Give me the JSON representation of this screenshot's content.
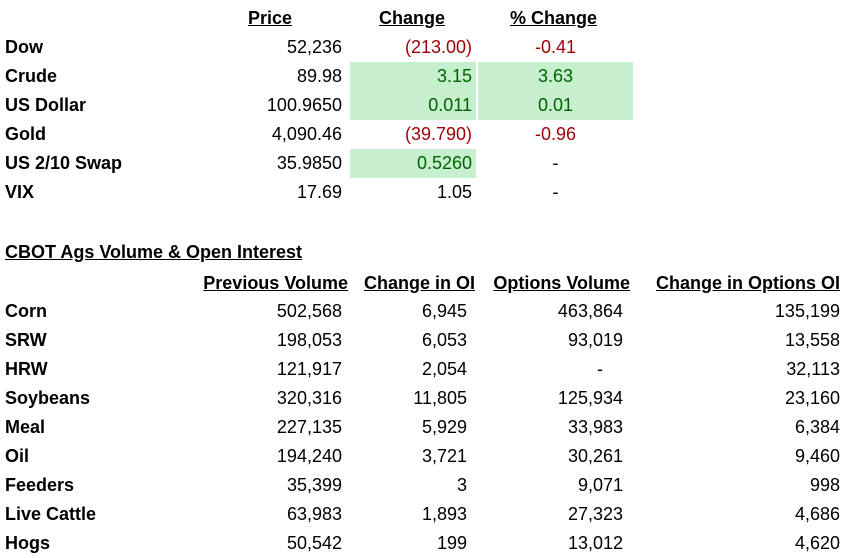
{
  "markets": {
    "headers": {
      "price": "Price",
      "change": "Change",
      "pct_change": "% Change"
    },
    "rows": [
      {
        "name": "Dow",
        "price": "52,236",
        "change": "(213.00)",
        "pct": "-0.41",
        "change_tone": "neg",
        "pct_tone": "neg",
        "change_hl": false,
        "pct_hl": false
      },
      {
        "name": "Crude",
        "price": "89.98",
        "change": "3.15",
        "pct": "3.63",
        "change_tone": "pos",
        "pct_tone": "pos",
        "change_hl": true,
        "pct_hl": true
      },
      {
        "name": "US Dollar",
        "price": "100.9650",
        "change": "0.011",
        "pct": "0.01",
        "change_tone": "pos",
        "pct_tone": "pos",
        "change_hl": true,
        "pct_hl": true
      },
      {
        "name": "Gold",
        "price": "4,090.46",
        "change": "(39.790)",
        "pct": "-0.96",
        "change_tone": "neg",
        "pct_tone": "neg",
        "change_hl": false,
        "pct_hl": false
      },
      {
        "name": "US 2/10 Swap",
        "price": "35.9850",
        "change": "0.5260",
        "pct": "-",
        "change_tone": "pos",
        "pct_tone": "",
        "change_hl": true,
        "pct_hl": false
      },
      {
        "name": "VIX",
        "price": "17.69",
        "change": "1.05",
        "pct": "-",
        "change_tone": "",
        "pct_tone": "",
        "change_hl": false,
        "pct_hl": false
      }
    ]
  },
  "ags": {
    "title": "CBOT Ags Volume & Open Interest",
    "headers": {
      "prev_volume": "Previous Volume",
      "change_oi": "Change in OI",
      "options_volume": "Options Volume",
      "change_options_oi": "Change in Options OI"
    },
    "rows": [
      {
        "name": "Corn",
        "prev_volume": "502,568",
        "change_oi": "6,945",
        "options_volume": "463,864",
        "change_options_oi": "135,199"
      },
      {
        "name": "SRW",
        "prev_volume": "198,053",
        "change_oi": "6,053",
        "options_volume": "93,019",
        "change_options_oi": "13,558"
      },
      {
        "name": "HRW",
        "prev_volume": "121,917",
        "change_oi": "2,054",
        "options_volume": "-",
        "change_options_oi": "32,113"
      },
      {
        "name": "Soybeans",
        "prev_volume": "320,316",
        "change_oi": "11,805",
        "options_volume": "125,934",
        "change_options_oi": "23,160"
      },
      {
        "name": "Meal",
        "prev_volume": "227,135",
        "change_oi": "5,929",
        "options_volume": "33,983",
        "change_options_oi": "6,384"
      },
      {
        "name": "Oil",
        "prev_volume": "194,240",
        "change_oi": "3,721",
        "options_volume": "30,261",
        "change_options_oi": "9,460"
      },
      {
        "name": "Feeders",
        "prev_volume": "35,399",
        "change_oi": "3",
        "options_volume": "9,071",
        "change_options_oi": "998"
      },
      {
        "name": "Live Cattle",
        "prev_volume": "63,983",
        "change_oi": "1,893",
        "options_volume": "27,323",
        "change_options_oi": "4,686"
      },
      {
        "name": "Hogs",
        "prev_volume": "50,542",
        "change_oi": "199",
        "options_volume": "13,012",
        "change_options_oi": "4,620"
      }
    ]
  }
}
